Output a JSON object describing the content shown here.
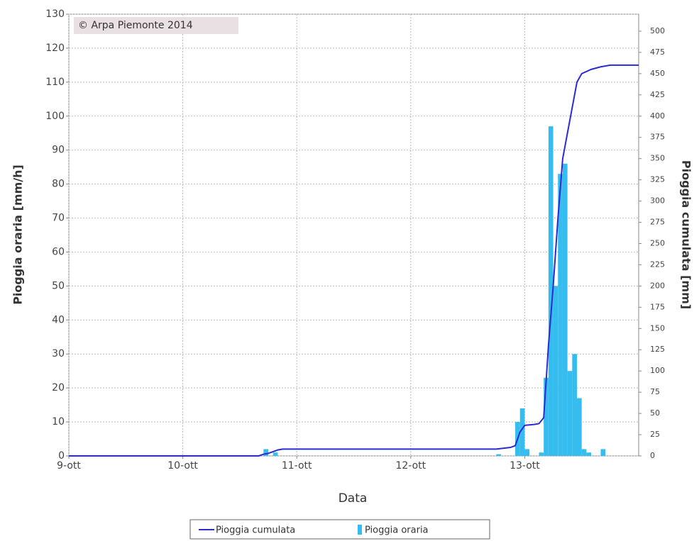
{
  "chart_data": {
    "type": "combo",
    "annotation": "© Arpa Piemonte 2014",
    "x_label": "Data",
    "y_label": "Pioggia oraria [mm/h]",
    "y2_label": "Pioggia cumulata [mm]",
    "xlim": [
      0,
      120
    ],
    "xticks": [
      {
        "value": 0,
        "label": "9-ott"
      },
      {
        "value": 24,
        "label": "10-ott"
      },
      {
        "value": 48,
        "label": "11-ott"
      },
      {
        "value": 72,
        "label": "12-ott"
      },
      {
        "value": 96,
        "label": "13-ott"
      }
    ],
    "ylim": [
      0,
      130
    ],
    "yticks": [
      0,
      10,
      20,
      30,
      40,
      50,
      60,
      70,
      80,
      90,
      100,
      110,
      120,
      130
    ],
    "y2lim": [
      0,
      520
    ],
    "y2ticks": [
      0,
      25,
      50,
      75,
      100,
      125,
      150,
      175,
      200,
      225,
      250,
      275,
      300,
      325,
      350,
      375,
      400,
      425,
      450,
      475,
      500
    ],
    "grid": true,
    "legend": "bottom",
    "series": [
      {
        "name": "Pioggia cumulata",
        "type": "line",
        "axis": "y2",
        "color": "#2b2bd4",
        "x": [
          0,
          40,
          41,
          42,
          43,
          44,
          45,
          90,
          93,
          94,
          95,
          96,
          98,
          99,
          100,
          101,
          102,
          103,
          104,
          105,
          106,
          107,
          108,
          110,
          112,
          114,
          120
        ],
        "values": [
          0,
          0,
          2,
          3,
          5,
          7,
          8,
          8,
          10,
          12,
          28,
          36,
          37,
          38,
          45,
          130,
          200,
          280,
          350,
          380,
          410,
          440,
          450,
          455,
          458,
          460,
          460
        ]
      },
      {
        "name": "Pioggia oraria",
        "type": "bar",
        "axis": "y",
        "color": "#36bdf0",
        "x": [
          41,
          43,
          90,
          94,
          95,
          96,
          99,
          100,
          101,
          102,
          103,
          104,
          105,
          106,
          107,
          108,
          109,
          112
        ],
        "values": [
          2,
          1,
          0.5,
          10,
          14,
          2,
          1,
          23,
          97,
          50,
          83,
          86,
          25,
          30,
          17,
          2,
          1,
          2
        ]
      }
    ]
  }
}
